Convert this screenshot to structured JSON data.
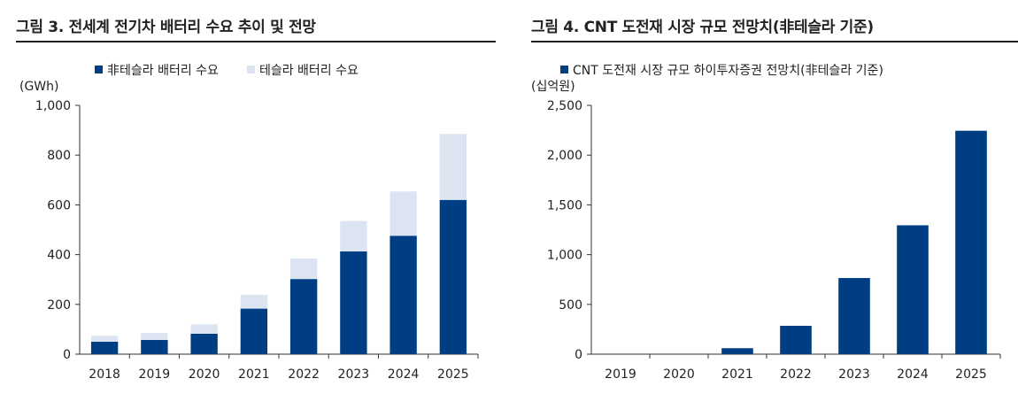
{
  "colors": {
    "primary": "#003E83",
    "secondary": "#DCE4F2",
    "axis": "#333333"
  },
  "chart_data": [
    {
      "type": "bar",
      "stacked": true,
      "title": "그림 3. 전세계 전기차 배터리 수요 추이 및 전망",
      "unit_label": "(GWh)",
      "categories": [
        "2018",
        "2019",
        "2020",
        "2021",
        "2022",
        "2023",
        "2024",
        "2025"
      ],
      "series": [
        {
          "name": "非테슬라 배터리 수요",
          "values": [
            50,
            57,
            82,
            183,
            302,
            413,
            476,
            620
          ]
        },
        {
          "name": "테슬라 배터리 수요",
          "values": [
            24,
            28,
            38,
            55,
            83,
            122,
            178,
            265
          ]
        }
      ],
      "yticks": [
        "0",
        "200",
        "400",
        "600",
        "800",
        "1,000"
      ],
      "ylim": [
        0,
        1000
      ],
      "legend_position": "top"
    },
    {
      "type": "bar",
      "title": "그림 4. CNT 도전재 시장 규모 전망치(非테슬라 기준)",
      "unit_label": "(십억원)",
      "categories": [
        "2019",
        "2020",
        "2021",
        "2022",
        "2023",
        "2024",
        "2025"
      ],
      "series": [
        {
          "name": "CNT 도전재 시장 규모 하이투자증권 전망치(非테슬라 기준)",
          "values": [
            0,
            0,
            60,
            285,
            765,
            1295,
            2245
          ]
        }
      ],
      "yticks": [
        "0",
        "500",
        "1,000",
        "1,500",
        "2,000",
        "2,500"
      ],
      "ylim": [
        0,
        2500
      ],
      "legend_position": "top"
    }
  ]
}
